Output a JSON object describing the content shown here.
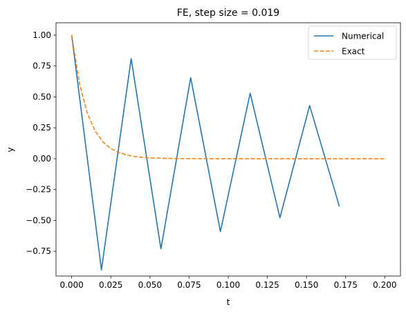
{
  "chart_data": {
    "type": "line",
    "title": "FE, step size = 0.019",
    "xlabel": "t",
    "ylabel": "y",
    "xlim": [
      -0.01,
      0.21
    ],
    "ylim": [
      -0.95,
      1.1
    ],
    "xticks": [
      0.0,
      0.025,
      0.05,
      0.075,
      0.1,
      0.125,
      0.15,
      0.175,
      0.2
    ],
    "xtick_labels": [
      "0.000",
      "0.025",
      "0.050",
      "0.075",
      "0.100",
      "0.125",
      "0.150",
      "0.175",
      "0.200"
    ],
    "yticks": [
      -0.75,
      -0.5,
      -0.25,
      0.0,
      0.25,
      0.5,
      0.75,
      1.0
    ],
    "ytick_labels": [
      "−0.75",
      "−0.50",
      "−0.25",
      "0.00",
      "0.25",
      "0.50",
      "0.75",
      "1.00"
    ],
    "grid": false,
    "legend_position": "upper right",
    "series": [
      {
        "name": "Numerical",
        "color": "#1f77b4",
        "style": "solid",
        "x": [
          0.0,
          0.019,
          0.038,
          0.057,
          0.076,
          0.095,
          0.114,
          0.133,
          0.152,
          0.171
        ],
        "y": [
          1.0,
          -0.9,
          0.81,
          -0.73,
          0.656,
          -0.59,
          0.53,
          -0.478,
          0.43,
          -0.387
        ]
      },
      {
        "name": "Exact",
        "color": "#ff7f0e",
        "style": "dashed",
        "x": [
          0.0,
          0.005,
          0.01,
          0.015,
          0.02,
          0.025,
          0.03,
          0.035,
          0.04,
          0.045,
          0.05,
          0.06,
          0.07,
          0.08,
          0.1,
          0.12,
          0.14,
          0.16,
          0.18,
          0.2
        ],
        "y": [
          1.0,
          0.6065,
          0.3679,
          0.2231,
          0.1353,
          0.0821,
          0.0498,
          0.0302,
          0.0183,
          0.0111,
          0.0067,
          0.0025,
          0.0009,
          0.0003,
          0.0,
          0.0,
          0.0,
          0.0,
          0.0,
          0.0
        ]
      }
    ]
  }
}
